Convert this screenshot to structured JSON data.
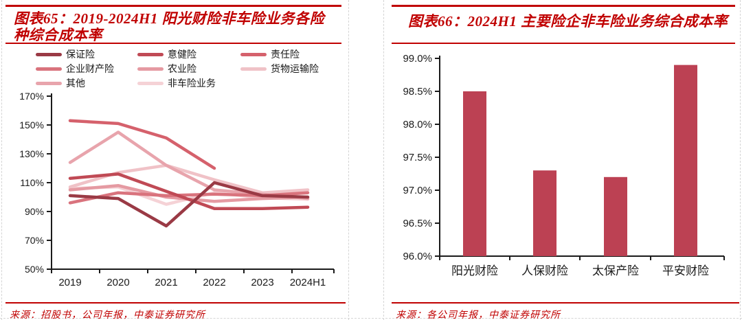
{
  "left_panel": {
    "title": "图表65：2019-2024H1 阳光财险非车险业务各险种综合成本率",
    "source": "来源：招股书，公司年报，中泰证券研究所"
  },
  "right_panel": {
    "title": "图表66：2024H1 主要险企非车险业务综合成本率",
    "source": "来源：各公司年报，中泰证券研究所"
  },
  "colors": {
    "accent_red": "#C00000",
    "bar_fill": "#BC4153",
    "axis_black": "#1A1A1A"
  },
  "chart_data": [
    {
      "id": "sunshine-nonauto-cor-by-line",
      "type": "line",
      "title": "2019-2024H1 阳光财险非车险业务各险种综合成本率",
      "categories": [
        "2019",
        "2020",
        "2021",
        "2022",
        "2023",
        "2024H1"
      ],
      "unit": "%",
      "ylim": [
        50,
        170
      ],
      "yticks": [
        170,
        150,
        130,
        110,
        90,
        70,
        50
      ],
      "grid": false,
      "legend_position": "top",
      "series": [
        {
          "name": "保证险",
          "color": "#9A3A45",
          "values": [
            101,
            99,
            80,
            110,
            101,
            100
          ]
        },
        {
          "name": "意健险",
          "color": "#C04A55",
          "values": [
            113,
            116,
            104,
            92,
            92,
            93
          ]
        },
        {
          "name": "责任险",
          "color": "#D5616C",
          "values": [
            153,
            151,
            141,
            120,
            null,
            null
          ]
        },
        {
          "name": "企业财产险",
          "color": "#D9737D",
          "values": [
            96,
            103,
            101,
            102,
            101,
            103
          ]
        },
        {
          "name": "农业险",
          "color": "#E59AA2",
          "values": [
            105,
            108,
            100,
            97,
            99,
            100
          ]
        },
        {
          "name": "货物运输险",
          "color": "#F0C2C7",
          "values": [
            107,
            117,
            122,
            112,
            103,
            105
          ]
        },
        {
          "name": "其他",
          "color": "#E8A4AC",
          "values": [
            124,
            145,
            122,
            105,
            102,
            99
          ]
        },
        {
          "name": "非车险业务",
          "color": "#F5D2D6",
          "values": [
            106,
            107,
            95,
            103,
            99.5,
            98.5
          ]
        }
      ]
    },
    {
      "id": "2024h1-insurers-nonauto-cor",
      "type": "bar",
      "title": "2024H1 主要险企非车险业务综合成本率",
      "categories": [
        "阳光财险",
        "人保财险",
        "太保产险",
        "平安财险"
      ],
      "values": [
        98.5,
        97.3,
        97.2,
        98.9
      ],
      "unit": "%",
      "ylim": [
        96.0,
        99.0
      ],
      "ytick_labels": [
        "99.0%",
        "98.5%",
        "98.0%",
        "97.5%",
        "97.0%",
        "96.5%",
        "96.0%"
      ],
      "bar_color": "#BC4153",
      "grid": false,
      "legend_position": "none"
    }
  ]
}
